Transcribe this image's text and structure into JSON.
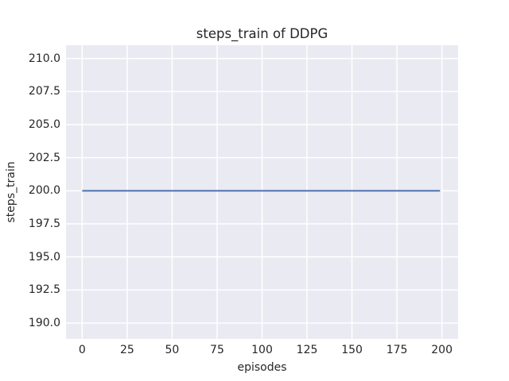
{
  "chart_data": {
    "type": "line",
    "title": "steps_train of DDPG",
    "xlabel": "episodes",
    "ylabel": "steps_train",
    "series": [
      {
        "name": "steps_train",
        "x": [
          0,
          199
        ],
        "y": [
          200,
          200
        ]
      }
    ],
    "xticks": [
      0,
      25,
      50,
      75,
      100,
      125,
      150,
      175,
      200
    ],
    "xtick_labels": [
      "0",
      "25",
      "50",
      "75",
      "100",
      "125",
      "150",
      "175",
      "200"
    ],
    "yticks": [
      190.0,
      192.5,
      195.0,
      197.5,
      200.0,
      202.5,
      205.0,
      207.5,
      210.0
    ],
    "ytick_labels": [
      "190.0",
      "192.5",
      "195.0",
      "197.5",
      "200.0",
      "202.5",
      "205.0",
      "207.5",
      "210.0"
    ],
    "xlim": [
      -9,
      209
    ],
    "ylim": [
      188.8,
      211.0
    ],
    "grid": true,
    "legend": "none",
    "colors": {
      "line": "#4c72b0",
      "plot_background": "#eaeaf2",
      "grid": "#ffffff",
      "text": "#262626",
      "figure_background": "#ffffff"
    }
  }
}
